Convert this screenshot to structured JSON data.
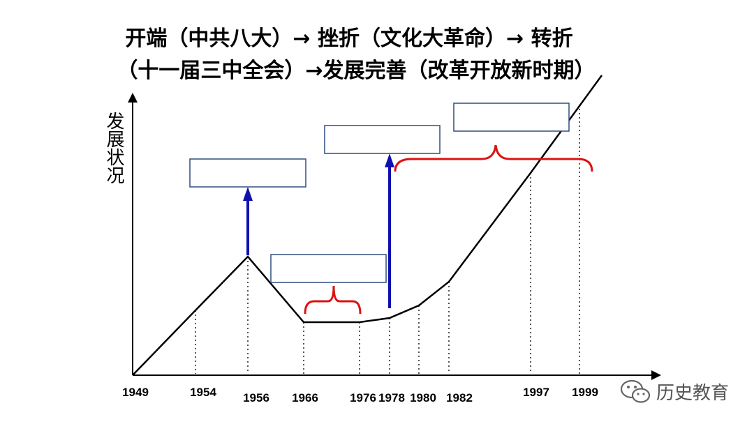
{
  "title": {
    "line1": "开端（中共八大）→ 挫折（文化大革命）→ 转折",
    "line2": "（十一届三中全会）→发展完善（改革开放新时期）"
  },
  "y_axis_label": "发展状况",
  "years": [
    "1949",
    "1954",
    "1956",
    "1966",
    "1976",
    "1978",
    "1980",
    "1982",
    "1997",
    "1999"
  ],
  "colors": {
    "curve": "#000000",
    "box_border": "#2f4f7f",
    "arrow": "#1010b0",
    "brace": "#dd1111",
    "guide": "#555555"
  },
  "watermark": {
    "icon": "wechat-icon",
    "text": "历史教育"
  }
}
